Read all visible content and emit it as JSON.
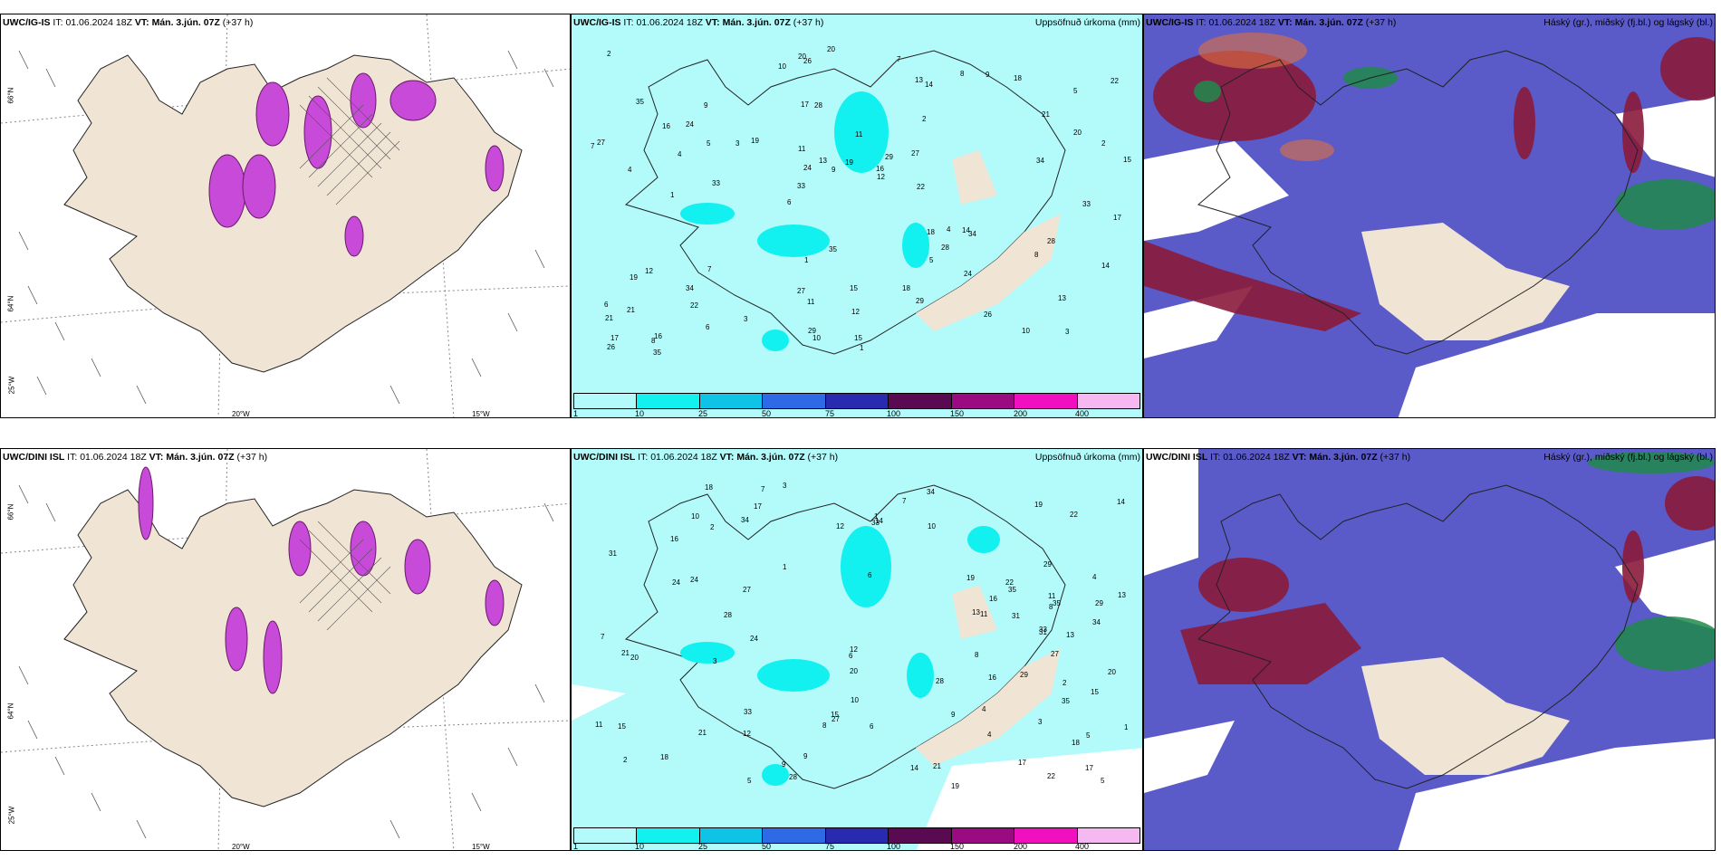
{
  "rows": [
    {
      "model": "UWC/IG-IS",
      "it_label": "IT:",
      "it_value": "01.06.2024 18Z",
      "vt_label": "VT:",
      "vt_value": "Mán. 3.jún. 07Z",
      "lead": "(+37 h)"
    },
    {
      "model": "UWC/DINI ISL",
      "it_label": "IT:",
      "it_value": "01.06.2024 18Z",
      "vt_label": "VT:",
      "vt_value": "Mán. 3.jún. 07Z",
      "lead": "(+37 h)"
    }
  ],
  "precip_title": "Uppsöfnuð úrkoma (mm)",
  "cloud_title": "Háský (gr.), miðský (fj.bl.) og lágský (bl.)",
  "scale": {
    "ticks": [
      "1",
      "10",
      "25",
      "50",
      "75",
      "100",
      "150",
      "200",
      "400"
    ],
    "colors": [
      "#b3fbfb",
      "#13f0f0",
      "#0fc3e6",
      "#2f6ae6",
      "#2a2ab0",
      "#5a0a50",
      "#9a0a80",
      "#f010c0",
      "#f6b8f0"
    ]
  },
  "axis_labels": {
    "lat_top": "66°N",
    "lat_mid": "64°N",
    "lat_bot": "25°W",
    "lon_a": "20°W",
    "lon_b": "15°W"
  },
  "colors": {
    "land": "#f0e4d4",
    "sea_precip": "#b3fbfb",
    "cloud_low": "#5a5ac8",
    "cloud_mid": "#8a1b3b",
    "cloud_high": "#1f8a4a",
    "purple": "#c84ad8"
  },
  "precip_labels_top": [
    "3",
    "4",
    "5",
    "6",
    "2",
    "16",
    "17",
    "11",
    "12",
    "19",
    "21",
    "22",
    "28",
    "29",
    "34",
    "35",
    "26",
    "15",
    "18",
    "20",
    "33",
    "27",
    "24",
    "9",
    "8",
    "7",
    "10",
    "13",
    "14",
    "1"
  ],
  "precip_labels_bottom": [
    "3",
    "4",
    "5",
    "6",
    "2",
    "17",
    "11",
    "12",
    "22",
    "24",
    "29",
    "31",
    "33",
    "28",
    "15",
    "16",
    "18",
    "34",
    "27",
    "35",
    "21",
    "20",
    "14",
    "13",
    "9",
    "8",
    "7",
    "10",
    "19",
    "1"
  ]
}
